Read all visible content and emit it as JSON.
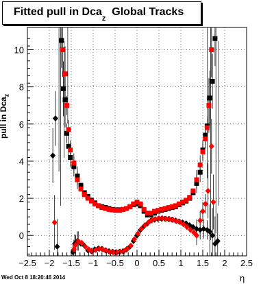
{
  "title": {
    "text": "Fitted pull in Dca",
    "subscript": "z",
    "suffix": "Global Tracks"
  },
  "footer": "Wed Oct  8 18:20:46 2014",
  "colors": {
    "series_black": "#000000",
    "series_red": "#ff0000",
    "grid": "#000000"
  },
  "chart_data": {
    "type": "scatter",
    "xlabel": "η",
    "ylabel": "pull in Dca",
    "ylabel_subscript": "z",
    "xlim": [
      -2.5,
      2.5
    ],
    "ylim": [
      -1.1,
      11.2
    ],
    "xticks": [
      -2.5,
      -2,
      -1.5,
      -1,
      -0.5,
      0,
      0.5,
      1,
      1.5,
      2,
      2.5
    ],
    "xtick_labels": [
      "−2.5",
      "−2",
      "−1.5",
      "−1",
      "−0.5",
      "0",
      "0.5",
      "1",
      "1.5",
      "2",
      "2.5"
    ],
    "yticks": [
      0,
      2,
      4,
      6,
      8,
      10
    ],
    "grid": true,
    "series": [
      {
        "color": "black",
        "marker": "square",
        "points": [
          [
            -1.72,
            10.5
          ],
          [
            -1.68,
            7.9
          ],
          [
            -1.64,
            7.3
          ],
          [
            -1.6,
            5.5
          ],
          [
            -1.56,
            4.8
          ],
          [
            -1.52,
            4.2
          ],
          [
            -1.44,
            3.7
          ],
          [
            -1.36,
            3.2
          ],
          [
            -1.28,
            2.7
          ],
          [
            -1.2,
            2.3
          ],
          [
            -1.12,
            2.1
          ],
          [
            -1.04,
            1.9
          ],
          [
            -0.96,
            1.75
          ],
          [
            -0.88,
            1.6
          ],
          [
            -0.8,
            1.55
          ],
          [
            -0.72,
            1.5
          ],
          [
            -0.64,
            1.45
          ],
          [
            -0.56,
            1.4
          ],
          [
            -0.48,
            1.38
          ],
          [
            -0.4,
            1.38
          ],
          [
            -0.32,
            1.4
          ],
          [
            -0.24,
            1.45
          ],
          [
            -0.16,
            1.55
          ],
          [
            -0.08,
            1.65
          ],
          [
            0.0,
            1.7
          ],
          [
            0.08,
            1.6
          ],
          [
            0.16,
            1.3
          ],
          [
            0.24,
            1.1
          ],
          [
            0.32,
            1.1
          ],
          [
            0.4,
            1.2
          ],
          [
            0.48,
            1.3
          ],
          [
            0.56,
            1.35
          ],
          [
            0.64,
            1.4
          ],
          [
            0.72,
            1.45
          ],
          [
            0.8,
            1.5
          ],
          [
            0.88,
            1.55
          ],
          [
            0.96,
            1.65
          ],
          [
            1.04,
            1.75
          ],
          [
            1.12,
            1.85
          ],
          [
            1.2,
            2.0
          ],
          [
            1.28,
            2.3
          ],
          [
            1.36,
            2.8
          ],
          [
            1.44,
            3.4
          ],
          [
            1.5,
            4.6
          ],
          [
            1.56,
            5.4
          ],
          [
            1.6,
            5.9
          ],
          [
            1.66,
            7.4
          ],
          [
            1.72,
            8.3
          ],
          [
            1.78,
            10.6
          ]
        ]
      },
      {
        "color": "red",
        "marker": "square",
        "points": [
          [
            -1.7,
            10.0
          ],
          [
            -1.64,
            8.7
          ],
          [
            -1.6,
            7.0
          ],
          [
            -1.56,
            5.7
          ],
          [
            -1.52,
            4.6
          ],
          [
            -1.44,
            3.9
          ],
          [
            -1.36,
            3.0
          ],
          [
            -1.28,
            2.5
          ],
          [
            -1.2,
            2.2
          ],
          [
            -1.12,
            2.0
          ],
          [
            -1.04,
            1.85
          ],
          [
            -0.96,
            1.7
          ],
          [
            -0.88,
            1.6
          ],
          [
            -0.8,
            1.5
          ],
          [
            -0.72,
            1.45
          ],
          [
            -0.64,
            1.4
          ],
          [
            -0.56,
            1.37
          ],
          [
            -0.48,
            1.35
          ],
          [
            -0.4,
            1.35
          ],
          [
            -0.32,
            1.4
          ],
          [
            -0.24,
            1.45
          ],
          [
            -0.16,
            1.55
          ],
          [
            -0.08,
            1.7
          ],
          [
            0.0,
            1.8
          ],
          [
            0.08,
            1.7
          ],
          [
            0.16,
            1.4
          ],
          [
            0.24,
            1.2
          ],
          [
            0.32,
            1.2
          ],
          [
            0.4,
            1.3
          ],
          [
            0.48,
            1.35
          ],
          [
            0.56,
            1.4
          ],
          [
            0.64,
            1.45
          ],
          [
            0.72,
            1.5
          ],
          [
            0.8,
            1.55
          ],
          [
            0.88,
            1.6
          ],
          [
            0.96,
            1.7
          ],
          [
            1.04,
            1.8
          ],
          [
            1.12,
            1.9
          ],
          [
            1.2,
            2.05
          ],
          [
            1.28,
            2.4
          ],
          [
            1.36,
            3.0
          ],
          [
            1.44,
            3.8
          ],
          [
            1.5,
            4.5
          ],
          [
            1.56,
            5.2
          ],
          [
            1.6,
            5.8
          ],
          [
            1.64,
            7.0
          ],
          [
            1.7,
            10.0
          ]
        ]
      },
      {
        "color": "black",
        "marker": "diamond",
        "points": [
          [
            -1.92,
            4.3
          ],
          [
            -1.86,
            6.3
          ],
          [
            -1.82,
            -0.6
          ],
          [
            -1.46,
            -0.9
          ],
          [
            -1.42,
            -0.45
          ],
          [
            -1.36,
            -0.3
          ],
          [
            -1.28,
            -0.45
          ],
          [
            -1.2,
            -0.55
          ],
          [
            -1.12,
            -0.8
          ],
          [
            -1.04,
            -0.85
          ],
          [
            -0.96,
            -0.75
          ],
          [
            -0.88,
            -0.7
          ],
          [
            -0.8,
            -0.72
          ],
          [
            -0.72,
            -0.8
          ],
          [
            -0.64,
            -0.85
          ],
          [
            -0.56,
            -0.88
          ],
          [
            -0.48,
            -0.9
          ],
          [
            -0.4,
            -0.88
          ],
          [
            -0.32,
            -0.85
          ],
          [
            -0.24,
            -0.75
          ],
          [
            -0.16,
            -0.6
          ],
          [
            -0.08,
            -0.3
          ],
          [
            0.0,
            0.0
          ],
          [
            0.08,
            0.3
          ],
          [
            0.16,
            0.5
          ],
          [
            0.24,
            0.65
          ],
          [
            0.32,
            0.8
          ],
          [
            0.4,
            0.85
          ],
          [
            0.48,
            0.88
          ],
          [
            0.56,
            0.9
          ],
          [
            0.64,
            0.9
          ],
          [
            0.72,
            0.88
          ],
          [
            0.8,
            0.85
          ],
          [
            0.88,
            0.8
          ],
          [
            0.96,
            0.75
          ],
          [
            1.04,
            0.7
          ],
          [
            1.12,
            0.65
          ],
          [
            1.2,
            0.55
          ],
          [
            1.28,
            0.45
          ],
          [
            1.36,
            0.35
          ],
          [
            1.44,
            0.3
          ],
          [
            1.52,
            0.35
          ],
          [
            1.6,
            0.3
          ],
          [
            1.66,
            0.2
          ],
          [
            1.72,
            0.0
          ],
          [
            1.78,
            -0.45
          ],
          [
            1.84,
            -0.3
          ]
        ]
      },
      {
        "color": "red",
        "marker": "diamond",
        "points": [
          [
            -1.88,
            0.7
          ],
          [
            -1.44,
            -0.75
          ],
          [
            -1.4,
            -0.5
          ],
          [
            -1.34,
            -0.3
          ],
          [
            -1.26,
            -0.4
          ],
          [
            -1.18,
            -0.6
          ],
          [
            -1.1,
            -0.75
          ],
          [
            -1.02,
            -0.85
          ],
          [
            -0.94,
            -0.78
          ],
          [
            -0.86,
            -0.72
          ],
          [
            -0.78,
            -0.75
          ],
          [
            -0.7,
            -0.82
          ],
          [
            -0.62,
            -0.88
          ],
          [
            -0.54,
            -0.9
          ],
          [
            -0.46,
            -0.92
          ],
          [
            -0.38,
            -0.88
          ],
          [
            -0.3,
            -0.85
          ],
          [
            -0.22,
            -0.72
          ],
          [
            -0.14,
            -0.55
          ],
          [
            -0.06,
            -0.2
          ],
          [
            0.02,
            0.1
          ],
          [
            0.1,
            0.35
          ],
          [
            0.18,
            0.55
          ],
          [
            0.26,
            0.7
          ],
          [
            0.34,
            0.82
          ],
          [
            0.42,
            0.88
          ],
          [
            0.5,
            0.92
          ],
          [
            0.58,
            0.92
          ],
          [
            0.66,
            0.9
          ],
          [
            0.74,
            0.88
          ],
          [
            0.82,
            0.84
          ],
          [
            0.9,
            0.78
          ],
          [
            0.98,
            0.72
          ],
          [
            1.06,
            0.6
          ],
          [
            1.14,
            0.45
          ],
          [
            1.22,
            0.3
          ],
          [
            1.3,
            0.15
          ],
          [
            1.36,
            0.0
          ],
          [
            1.44,
            0.8
          ],
          [
            1.5,
            1.3
          ],
          [
            1.56,
            1.7
          ],
          [
            1.62,
            2.4
          ],
          [
            1.7,
            4.8
          ],
          [
            1.74,
            1.8
          ]
        ]
      }
    ]
  }
}
